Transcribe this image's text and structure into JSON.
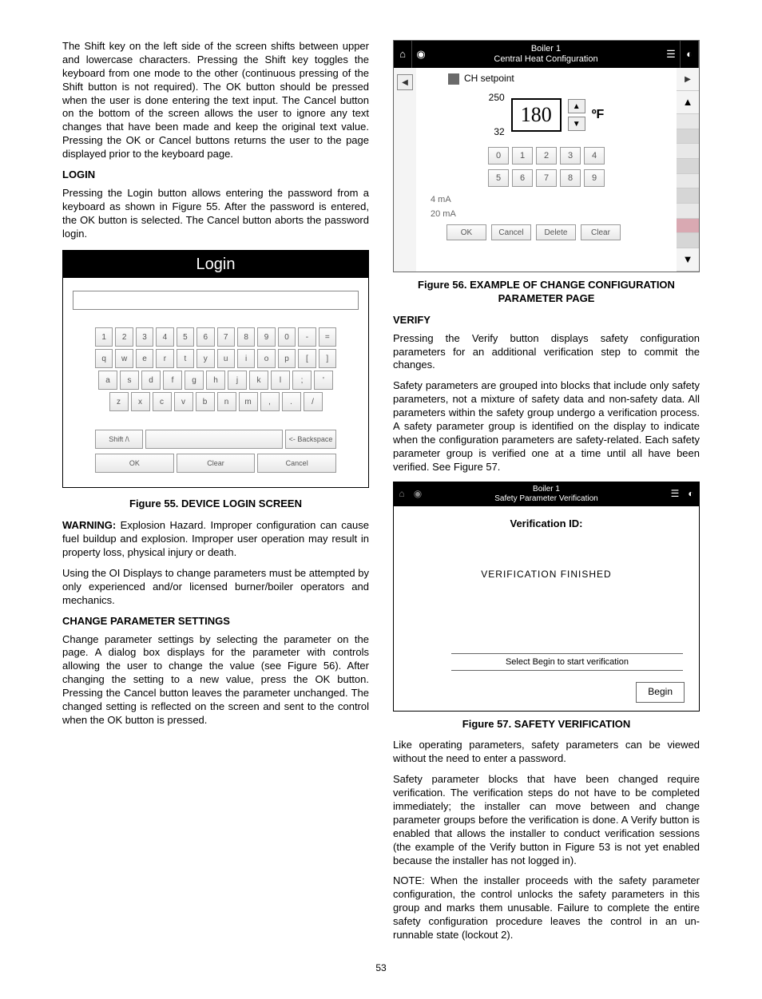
{
  "left": {
    "intro": "The Shift key on the left side of the screen shifts between upper and lowercase characters. Pressing the Shift key toggles the keyboard from one mode to the other (continuous pressing of the Shift button is not required). The OK button should be pressed when the user is done entering the text input. The Cancel button on the bottom of the screen allows the user to ignore any text changes that have been made and keep the original text value. Pressing the OK or Cancel buttons returns the user to the page displayed prior to the keyboard page.",
    "login_h": "LOGIN",
    "login_p": "Pressing the Login button allows entering the password from a keyboard as shown in Figure 55. After the password is entered, the OK button is selected. The Cancel button aborts the password login.",
    "fig55": {
      "title": "Login",
      "rows": [
        [
          "1",
          "2",
          "3",
          "4",
          "5",
          "6",
          "7",
          "8",
          "9",
          "0",
          "-",
          "="
        ],
        [
          "q",
          "w",
          "e",
          "r",
          "t",
          "y",
          "u",
          "i",
          "o",
          "p",
          "[",
          "]"
        ],
        [
          "a",
          "s",
          "d",
          "f",
          "g",
          "h",
          "j",
          "k",
          "l",
          ";",
          "'"
        ],
        [
          "z",
          "x",
          "c",
          "v",
          "b",
          "n",
          "m",
          ",",
          ".",
          "/"
        ]
      ],
      "shift": "Shift /\\",
      "backspace": "<- Backspace",
      "ok": "OK",
      "clear": "Clear",
      "cancel": "Cancel",
      "caption": "Figure 55.  DEVICE LOGIN SCREEN"
    },
    "warn_label": "WARNING:",
    "warn": " Explosion Hazard. Improper configuration can cause fuel buildup and explosion. Improper user operation may result in property loss, physical injury or death.",
    "using": "Using the OI Displays to change parameters must be attempted by only experienced and/or licensed burner/boiler operators and mechanics.",
    "change_h": "CHANGE PARAMETER SETTINGS",
    "change_p": "Change parameter settings by selecting the parameter on the page. A dialog box displays for the parameter with controls allowing the user to change the value (see Figure 56). After changing the setting to a new value, press the OK button. Pressing the Cancel button leaves the parameter unchanged. The changed setting is reflected on the screen and sent to the control when the OK button is pressed."
  },
  "right": {
    "fig56": {
      "title1": "Boiler 1",
      "title2": "Central Heat Configuration",
      "ch": "CH setpoint",
      "hi": "250",
      "val": "180",
      "lo": "32",
      "unit": "ºF",
      "nums1": [
        "0",
        "1",
        "2",
        "3",
        "4"
      ],
      "nums2": [
        "5",
        "6",
        "7",
        "8",
        "9"
      ],
      "ma1": "4 mA",
      "ma2": "20 mA",
      "btns": [
        "OK",
        "Cancel",
        "Delete",
        "Clear"
      ],
      "caption": "Figure 56.  EXAMPLE OF CHANGE CONFIGURATION PARAMETER PAGE"
    },
    "verify_h": "VERIFY",
    "verify_p1": "Pressing the Verify button displays safety configuration parameters for an additional verification step to commit the changes.",
    "verify_p2": "Safety parameters are grouped into blocks that include only safety parameters, not a mixture of safety data and non-safety data. All parameters within the safety group undergo a verification process. A safety parameter group is identified on the display to indicate when the configuration parameters are safety-related. Each safety parameter group is verified one at a time until all have been verified. See Figure 57.",
    "fig57": {
      "title1": "Boiler 1",
      "title2": "Safety Parameter Verification",
      "ver_id": "Verification ID:",
      "ver_fin": "VERIFICATION FINISHED",
      "bottom": "Select Begin to start verification",
      "begin": "Begin",
      "caption": "Figure 57.  SAFETY VERIFICATION"
    },
    "like": "Like operating parameters, safety parameters can be viewed without the need to enter a password.",
    "blocks": "Safety parameter blocks that have been changed require verification. The verification steps do not have to be completed immediately; the installer can move between and change parameter groups before the verification is done. A Verify button is enabled that allows the installer to conduct verification sessions (the example of the Verify button in Figure 53 is not yet enabled because the installer has not logged in).",
    "note": "NOTE: When the installer proceeds with the safety parameter configuration, the control unlocks the safety parameters in this group and marks them unusable. Failure to complete the entire safety configuration procedure leaves the control in an un-runnable state (lockout 2)."
  },
  "pagenum": "53"
}
